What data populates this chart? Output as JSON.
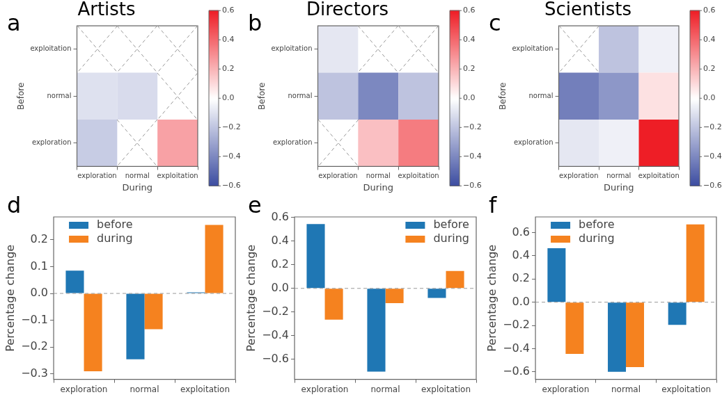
{
  "chart_data": [
    {
      "type": "heatmap",
      "title": "Artists",
      "annotations": [
        "a"
      ],
      "xlabel": "During",
      "ylabel": "Before",
      "categories": [
        "exploration",
        "normal",
        "exploitation"
      ],
      "y_categories": [
        "exploitation",
        "normal",
        "exploration"
      ],
      "cells": [
        [
          null,
          null,
          null
        ],
        [
          -0.1,
          -0.12,
          null
        ],
        [
          -0.17,
          null,
          0.25
        ]
      ],
      "clim": [
        -0.6,
        0.6
      ],
      "cticks": [
        {
          "value": -0.6,
          "label": "−0.6"
        },
        {
          "value": -0.4,
          "label": "−0.4"
        },
        {
          "value": -0.2,
          "label": "−0.2"
        },
        {
          "value": 0,
          "label": "0.0"
        },
        {
          "value": 0.2,
          "label": "0.2"
        },
        {
          "value": 0.4,
          "label": "0.4"
        },
        {
          "value": 0.6,
          "label": "0.6"
        }
      ]
    },
    {
      "type": "heatmap",
      "title": "Directors",
      "annotations": [
        "b"
      ],
      "xlabel": "During",
      "ylabel": "Before",
      "categories": [
        "exploration",
        "normal",
        "exploitation"
      ],
      "y_categories": [
        "exploitation",
        "normal",
        "exploration"
      ],
      "cells": [
        [
          -0.08,
          null,
          null
        ],
        [
          -0.2,
          -0.4,
          -0.2
        ],
        [
          null,
          0.17,
          0.35
        ]
      ],
      "clim": [
        -0.6,
        0.6
      ],
      "cticks": [
        {
          "value": -0.6,
          "label": "−0.6"
        },
        {
          "value": -0.4,
          "label": "−0.4"
        },
        {
          "value": -0.2,
          "label": "−0.2"
        },
        {
          "value": 0,
          "label": "0.0"
        },
        {
          "value": 0.2,
          "label": "0.2"
        },
        {
          "value": 0.4,
          "label": "0.4"
        },
        {
          "value": 0.6,
          "label": "0.6"
        }
      ]
    },
    {
      "type": "heatmap",
      "title": "Scientists",
      "annotations": [
        "c"
      ],
      "xlabel": "During",
      "ylabel": "Before",
      "categories": [
        "exploration",
        "normal",
        "exploitation"
      ],
      "y_categories": [
        "exploitation",
        "normal",
        "exploration"
      ],
      "cells": [
        [
          null,
          -0.2,
          -0.05
        ],
        [
          -0.43,
          -0.35,
          0.08
        ],
        [
          -0.08,
          -0.05,
          0.6
        ]
      ],
      "clim": [
        -0.6,
        0.6
      ],
      "cticks": [
        {
          "value": -0.6,
          "label": "−0.6"
        },
        {
          "value": -0.4,
          "label": "−0.4"
        },
        {
          "value": -0.2,
          "label": "−0.2"
        },
        {
          "value": 0,
          "label": "0.0"
        },
        {
          "value": 0.2,
          "label": "0.2"
        },
        {
          "value": 0.4,
          "label": "0.4"
        },
        {
          "value": 0.6,
          "label": "0.6"
        }
      ]
    },
    {
      "type": "bar",
      "annotations": [
        "d"
      ],
      "ylabel": "Percentage change",
      "categories": [
        "exploration",
        "normal",
        "exploitation"
      ],
      "legend": "top left",
      "series": [
        {
          "name": "before",
          "color": "#1f77b4",
          "values": [
            0.085,
            -0.245,
            0.004
          ]
        },
        {
          "name": "during",
          "color": "#f5821f",
          "values": [
            -0.29,
            -0.133,
            0.255
          ]
        }
      ],
      "ylim": [
        -0.32,
        0.285
      ],
      "yticks": [
        {
          "value": -0.3,
          "label": "−0.3"
        },
        {
          "value": -0.2,
          "label": "−0.2"
        },
        {
          "value": -0.1,
          "label": "−0.1"
        },
        {
          "value": 0,
          "label": "0.0"
        },
        {
          "value": 0.1,
          "label": "0.1"
        },
        {
          "value": 0.2,
          "label": "0.2"
        }
      ],
      "ref_lines": [
        {
          "axis": "y",
          "value": 0,
          "color": "#999999",
          "line_style": "dashed"
        }
      ]
    },
    {
      "type": "bar",
      "annotations": [
        "e"
      ],
      "ylabel": "Percentage change",
      "categories": [
        "exploration",
        "normal",
        "exploitation"
      ],
      "legend": "top right",
      "series": [
        {
          "name": "before",
          "color": "#1f77b4",
          "values": [
            0.545,
            -0.705,
            -0.08
          ]
        },
        {
          "name": "during",
          "color": "#f5821f",
          "values": [
            -0.265,
            -0.125,
            0.148
          ]
        }
      ],
      "ylim": [
        -0.77,
        0.605
      ],
      "yticks": [
        {
          "value": -0.6,
          "label": "−0.6"
        },
        {
          "value": -0.4,
          "label": "−0.4"
        },
        {
          "value": -0.2,
          "label": "−0.2"
        },
        {
          "value": 0,
          "label": "0.0"
        },
        {
          "value": 0.2,
          "label": "0.2"
        },
        {
          "value": 0.4,
          "label": "0.4"
        },
        {
          "value": 0.6,
          "label": "0.6"
        }
      ],
      "ref_lines": [
        {
          "axis": "y",
          "value": 0,
          "color": "#999999",
          "line_style": "dashed"
        }
      ]
    },
    {
      "type": "bar",
      "annotations": [
        "f"
      ],
      "ylabel": "Percentage change",
      "categories": [
        "exploration",
        "normal",
        "exploitation"
      ],
      "legend": "top left",
      "series": [
        {
          "name": "before",
          "color": "#1f77b4",
          "values": [
            0.465,
            -0.6,
            -0.195
          ]
        },
        {
          "name": "during",
          "color": "#f5821f",
          "values": [
            -0.445,
            -0.56,
            0.67
          ]
        }
      ],
      "ylim": [
        -0.665,
        0.735
      ],
      "yticks": [
        {
          "value": -0.6,
          "label": "−0.6"
        },
        {
          "value": -0.4,
          "label": "−0.4"
        },
        {
          "value": -0.2,
          "label": "−0.2"
        },
        {
          "value": 0,
          "label": "0.0"
        },
        {
          "value": 0.2,
          "label": "0.2"
        },
        {
          "value": 0.4,
          "label": "0.4"
        },
        {
          "value": 0.6,
          "label": "0.6"
        }
      ],
      "ref_lines": [
        {
          "axis": "y",
          "value": 0,
          "color": "#999999",
          "line_style": "dashed"
        }
      ]
    }
  ]
}
